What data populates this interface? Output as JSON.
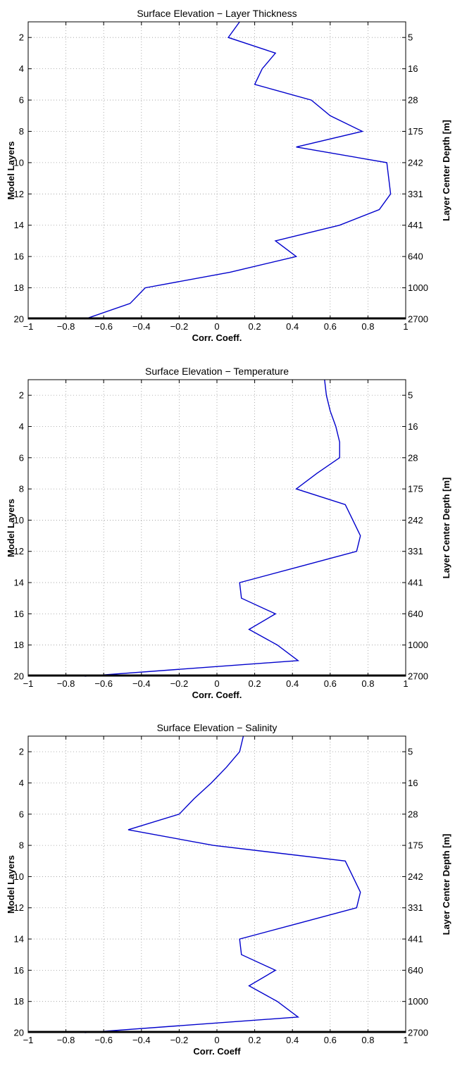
{
  "chart_data": [
    {
      "type": "line",
      "title": "Surface Elevation − Layer Thickness",
      "xlabel": "Corr. Coeff.",
      "ylabel": "Model Layers",
      "ylabel_right": "Layer Center Depth [m]",
      "xlim": [
        -1,
        1
      ],
      "ylim": [
        1,
        20
      ],
      "y_reversed": true,
      "grid": true,
      "x_ticks": [
        "−1",
        "−0.8",
        "−0.6",
        "−0.4",
        "−0.2",
        "0",
        "0.2",
        "0.4",
        "0.6",
        "0.8",
        "1"
      ],
      "y_ticks": [
        "2",
        "4",
        "6",
        "8",
        "10",
        "12",
        "14",
        "16",
        "18",
        "20"
      ],
      "right_ticks": [
        "5",
        "16",
        "28",
        "175",
        "242",
        "331",
        "441",
        "640",
        "1000",
        "2700"
      ],
      "line_color": "#0000cc",
      "series": [
        {
          "x": [
            0.12,
            0.06,
            0.31,
            0.24,
            0.2,
            0.5,
            0.6,
            0.77,
            0.42,
            0.9,
            0.91,
            0.92,
            0.86,
            0.65,
            0.31,
            0.42,
            0.07,
            -0.38,
            -0.46,
            -0.7
          ],
          "y": [
            1,
            2,
            3,
            4,
            5,
            6,
            7,
            8,
            9,
            10,
            11,
            12,
            13,
            14,
            15,
            16,
            17,
            18,
            19,
            20
          ]
        }
      ]
    },
    {
      "type": "line",
      "title": "Surface Elevation − Temperature",
      "xlabel": "Corr. Coeff.",
      "ylabel": "Model Layers",
      "ylabel_right": "Layer Center Depth [m]",
      "xlim": [
        -1,
        1
      ],
      "ylim": [
        1,
        20
      ],
      "y_reversed": true,
      "grid": true,
      "x_ticks": [
        "−1",
        "−0.8",
        "−0.6",
        "−0.4",
        "−0.2",
        "0",
        "0.2",
        "0.4",
        "0.6",
        "0.8",
        "1"
      ],
      "y_ticks": [
        "2",
        "4",
        "6",
        "8",
        "10",
        "12",
        "14",
        "16",
        "18",
        "20"
      ],
      "right_ticks": [
        "5",
        "16",
        "28",
        "175",
        "242",
        "331",
        "441",
        "640",
        "1000",
        "2700"
      ],
      "line_color": "#0000cc",
      "series": [
        {
          "x": [
            0.57,
            0.58,
            0.6,
            0.63,
            0.65,
            0.65,
            0.53,
            0.42,
            0.68,
            0.72,
            0.76,
            0.74,
            0.43,
            0.12,
            0.13,
            0.31,
            0.17,
            0.32,
            0.43,
            -0.7
          ],
          "y": [
            1,
            2,
            3,
            4,
            5,
            6,
            7,
            8,
            9,
            10,
            11,
            12,
            13,
            14,
            15,
            16,
            17,
            18,
            19,
            20
          ]
        }
      ]
    },
    {
      "type": "line",
      "title": "Surface Elevation − Salinity",
      "xlabel": "Corr. Coeff",
      "ylabel": "Model Layers",
      "ylabel_right": "Layer Center Depth [m]",
      "xlim": [
        -1,
        1
      ],
      "ylim": [
        1,
        20
      ],
      "y_reversed": true,
      "grid": true,
      "x_ticks": [
        "−1",
        "−0.8",
        "−0.6",
        "−0.4",
        "−0.2",
        "0",
        "0.2",
        "0.4",
        "0.6",
        "0.8",
        "1"
      ],
      "y_ticks": [
        "2",
        "4",
        "6",
        "8",
        "10",
        "12",
        "14",
        "16",
        "18",
        "20"
      ],
      "right_ticks": [
        "5",
        "16",
        "28",
        "175",
        "242",
        "331",
        "441",
        "640",
        "1000",
        "2700"
      ],
      "line_color": "#0000cc",
      "series": [
        {
          "x": [
            0.14,
            0.12,
            0.05,
            -0.03,
            -0.12,
            -0.2,
            -0.47,
            -0.02,
            0.68,
            0.72,
            0.76,
            0.74,
            0.43,
            0.12,
            0.13,
            0.31,
            0.17,
            0.32,
            0.43,
            -0.7
          ],
          "y": [
            1,
            2,
            3,
            4,
            5,
            6,
            7,
            8,
            9,
            10,
            11,
            12,
            13,
            14,
            15,
            16,
            17,
            18,
            19,
            20
          ]
        }
      ]
    }
  ]
}
